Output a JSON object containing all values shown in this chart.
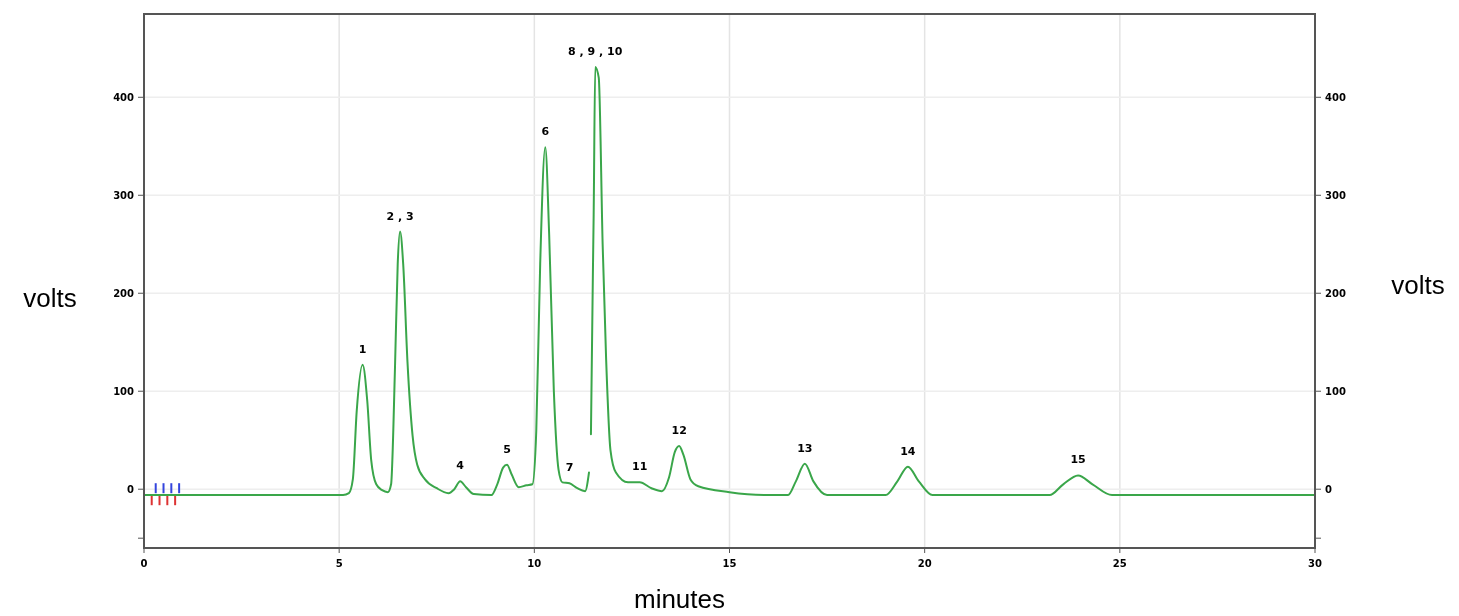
{
  "chart_data": {
    "type": "line",
    "xlabel": "minutes",
    "ylabel": "volts",
    "y2label": "volts",
    "x": [
      0,
      5.1,
      5.25,
      5.35,
      5.45,
      5.6,
      5.72,
      5.82,
      5.95,
      6.1,
      6.25,
      6.33,
      6.43,
      6.5,
      6.56,
      6.64,
      6.75,
      6.88,
      7.0,
      7.2,
      7.5,
      7.8,
      7.95,
      8.1,
      8.25,
      8.45,
      8.9,
      9.05,
      9.2,
      9.3,
      9.42,
      9.6,
      9.8,
      9.95,
      10.05,
      10.15,
      10.28,
      10.38,
      10.5,
      10.62,
      10.72,
      10.9,
      11.1,
      11.3,
      11.4,
      11.42,
      11.45,
      11.5,
      11.52,
      11.56,
      11.65,
      11.75,
      11.84,
      11.95,
      12.09,
      12.4,
      12.7,
      13.0,
      13.27,
      13.45,
      13.6,
      13.71,
      13.82,
      14.0,
      14.2,
      15,
      16,
      16.5,
      16.7,
      16.93,
      17.15,
      17.5,
      19.0,
      19.3,
      19.57,
      19.85,
      20.2,
      23.2,
      23.55,
      23.93,
      24.3,
      24.8,
      30
    ],
    "series": [
      {
        "color": "#3aa64a",
        "values": [
          -6,
          -6,
          -4,
          10,
          80,
          127,
          90,
          30,
          5,
          -1,
          -3,
          5,
          124,
          230,
          263,
          230,
          130,
          55,
          25,
          10,
          1,
          -4,
          0,
          8,
          2,
          -5,
          -6,
          5,
          22,
          25,
          15,
          2,
          4,
          5,
          60,
          230,
          349,
          260,
          100,
          20,
          7,
          6,
          1,
          -2,
          17,
          null,
          56,
          220,
          280,
          431,
          420,
          250,
          132,
          40,
          17,
          7,
          7,
          1,
          -2,
          12,
          38,
          44,
          35,
          10,
          3,
          -3,
          -6,
          -6,
          8,
          26,
          8,
          -6,
          -6,
          8,
          23,
          8,
          -6,
          -6,
          5,
          14,
          5,
          -6,
          -6
        ]
      }
    ],
    "xlim": [
      0,
      30
    ],
    "xticks": [
      0,
      5,
      10,
      15,
      20,
      25,
      30
    ],
    "ylim": [
      -60,
      485
    ],
    "yticks": [
      {
        "value": -50,
        "label": null
      },
      0,
      100,
      200,
      300,
      400
    ],
    "y2lim": [
      -60,
      485
    ],
    "y2ticks": [
      {
        "value": -50,
        "label": null
      },
      0,
      100,
      200,
      300,
      400
    ],
    "grid": true,
    "marker": "none",
    "line_style": "solid",
    "annotations": [
      {
        "text": "1",
        "x": 5.6,
        "y": 127
      },
      {
        "text": "2 , 3",
        "x": 6.56,
        "y": 263
      },
      {
        "text": "4",
        "x": 8.1,
        "y": 8
      },
      {
        "text": "5",
        "x": 9.3,
        "y": 25
      },
      {
        "text": "6",
        "x": 10.28,
        "y": 349
      },
      {
        "text": "7",
        "x": 10.9,
        "y": 6
      },
      {
        "text": "8 , 9 , 10",
        "x": 11.56,
        "y": 431
      },
      {
        "text": "11",
        "x": 12.7,
        "y": 7
      },
      {
        "text": "12",
        "x": 13.71,
        "y": 44
      },
      {
        "text": "13",
        "x": 16.93,
        "y": 26
      },
      {
        "text": "14",
        "x": 19.57,
        "y": 23
      },
      {
        "text": "15",
        "x": 23.93,
        "y": 14
      }
    ]
  }
}
